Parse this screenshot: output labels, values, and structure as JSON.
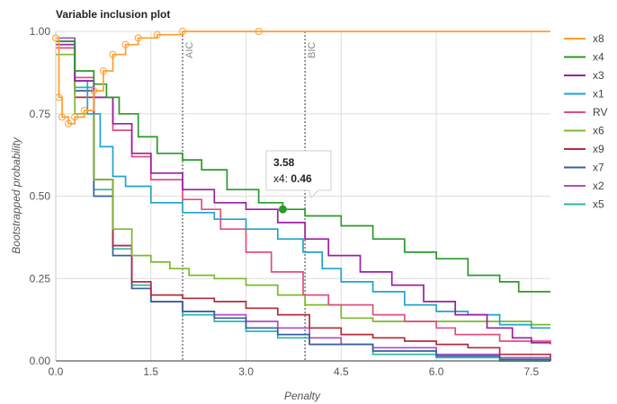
{
  "chart_data": {
    "type": "line",
    "title": "Variable inclusion plot",
    "xlabel": "Penalty",
    "ylabel": "Bootstrapped probability",
    "xlim": [
      0,
      7.8
    ],
    "ylim": [
      0,
      1
    ],
    "x_ticks": [
      "0.0",
      "1.5",
      "3.0",
      "4.5",
      "6.0",
      "7.5"
    ],
    "y_ticks": [
      "0.00",
      "0.25",
      "0.50",
      "0.75",
      "1.00"
    ],
    "grid": true,
    "legend_position": "right",
    "vlines": [
      {
        "label": "AIC",
        "x": 2.0
      },
      {
        "label": "BIC",
        "x": 3.93
      }
    ],
    "series": [
      {
        "name": "x8",
        "color": "#ff9e2c",
        "points": [
          [
            0,
            0.98
          ],
          [
            0.05,
            0.8
          ],
          [
            0.1,
            0.74
          ],
          [
            0.2,
            0.72
          ],
          [
            0.3,
            0.74
          ],
          [
            0.45,
            0.76
          ],
          [
            0.6,
            0.82
          ],
          [
            0.75,
            0.88
          ],
          [
            0.9,
            0.93
          ],
          [
            1.1,
            0.96
          ],
          [
            1.3,
            0.98
          ],
          [
            1.6,
            0.99
          ],
          [
            2.0,
            1.0
          ],
          [
            3.2,
            1.0
          ],
          [
            7.8,
            1.0
          ]
        ],
        "markers_until": 3.2
      },
      {
        "name": "x4",
        "color": "#2a9a2a",
        "points": [
          [
            0,
            0.97
          ],
          [
            0.3,
            0.88
          ],
          [
            0.6,
            0.84
          ],
          [
            0.8,
            0.8
          ],
          [
            1.0,
            0.75
          ],
          [
            1.3,
            0.68
          ],
          [
            1.6,
            0.63
          ],
          [
            2.0,
            0.61
          ],
          [
            2.3,
            0.58
          ],
          [
            2.7,
            0.52
          ],
          [
            3.2,
            0.48
          ],
          [
            3.58,
            0.46
          ],
          [
            3.93,
            0.44
          ],
          [
            4.5,
            0.41
          ],
          [
            5.0,
            0.37
          ],
          [
            5.5,
            0.33
          ],
          [
            6.0,
            0.31
          ],
          [
            6.5,
            0.26
          ],
          [
            7.0,
            0.24
          ],
          [
            7.3,
            0.21
          ],
          [
            7.8,
            0.21
          ]
        ]
      },
      {
        "name": "x3",
        "color": "#9c1fa0",
        "points": [
          [
            0,
            0.96
          ],
          [
            0.3,
            0.85
          ],
          [
            0.6,
            0.8
          ],
          [
            0.9,
            0.72
          ],
          [
            1.2,
            0.63
          ],
          [
            1.5,
            0.57
          ],
          [
            2.0,
            0.52
          ],
          [
            2.5,
            0.48
          ],
          [
            3.0,
            0.46
          ],
          [
            3.5,
            0.42
          ],
          [
            3.93,
            0.37
          ],
          [
            4.3,
            0.32
          ],
          [
            4.8,
            0.27
          ],
          [
            5.3,
            0.23
          ],
          [
            5.8,
            0.18
          ],
          [
            6.3,
            0.14
          ],
          [
            6.8,
            0.1
          ],
          [
            7.2,
            0.07
          ],
          [
            7.5,
            0.055
          ],
          [
            7.8,
            0.055
          ]
        ]
      },
      {
        "name": "x1",
        "color": "#1fa3d0",
        "points": [
          [
            0,
            0.97
          ],
          [
            0.3,
            0.85
          ],
          [
            0.5,
            0.75
          ],
          [
            0.7,
            0.65
          ],
          [
            0.9,
            0.56
          ],
          [
            1.1,
            0.53
          ],
          [
            1.5,
            0.48
          ],
          [
            2.0,
            0.45
          ],
          [
            2.5,
            0.43
          ],
          [
            3.0,
            0.4
          ],
          [
            3.5,
            0.37
          ],
          [
            3.9,
            0.33
          ],
          [
            4.2,
            0.28
          ],
          [
            4.5,
            0.24
          ],
          [
            5.0,
            0.21
          ],
          [
            5.5,
            0.17
          ],
          [
            6.0,
            0.15
          ],
          [
            6.5,
            0.14
          ],
          [
            7.0,
            0.11
          ],
          [
            7.5,
            0.1
          ],
          [
            7.8,
            0.1
          ]
        ]
      },
      {
        "name": "RV",
        "color": "#e04f7e",
        "points": [
          [
            0,
            0.95
          ],
          [
            0.3,
            0.86
          ],
          [
            0.6,
            0.8
          ],
          [
            0.9,
            0.7
          ],
          [
            1.2,
            0.62
          ],
          [
            1.5,
            0.55
          ],
          [
            2.0,
            0.49
          ],
          [
            2.3,
            0.46
          ],
          [
            2.6,
            0.4
          ],
          [
            3.0,
            0.33
          ],
          [
            3.4,
            0.27
          ],
          [
            3.9,
            0.2
          ],
          [
            4.3,
            0.17
          ],
          [
            5.0,
            0.14
          ],
          [
            5.5,
            0.12
          ],
          [
            6.0,
            0.1
          ],
          [
            6.3,
            0.08
          ],
          [
            7.0,
            0.06
          ],
          [
            7.8,
            0.05
          ]
        ]
      },
      {
        "name": "x6",
        "color": "#7cb82f",
        "points": [
          [
            0,
            0.93
          ],
          [
            0.3,
            0.75
          ],
          [
            0.6,
            0.55
          ],
          [
            0.9,
            0.4
          ],
          [
            1.2,
            0.32
          ],
          [
            1.5,
            0.3
          ],
          [
            1.8,
            0.28
          ],
          [
            2.1,
            0.26
          ],
          [
            2.5,
            0.25
          ],
          [
            3.0,
            0.23
          ],
          [
            3.5,
            0.2
          ],
          [
            3.93,
            0.17
          ],
          [
            4.5,
            0.13
          ],
          [
            5.0,
            0.12
          ],
          [
            5.5,
            0.12
          ],
          [
            6.5,
            0.12
          ],
          [
            7.5,
            0.11
          ],
          [
            7.8,
            0.11
          ]
        ]
      },
      {
        "name": "x9",
        "color": "#b52b3a",
        "points": [
          [
            0,
            0.96
          ],
          [
            0.3,
            0.8
          ],
          [
            0.6,
            0.55
          ],
          [
            0.9,
            0.35
          ],
          [
            1.2,
            0.24
          ],
          [
            1.5,
            0.2
          ],
          [
            2.0,
            0.19
          ],
          [
            2.5,
            0.18
          ],
          [
            3.0,
            0.16
          ],
          [
            3.5,
            0.14
          ],
          [
            4.0,
            0.1
          ],
          [
            4.5,
            0.08
          ],
          [
            5.0,
            0.07
          ],
          [
            5.5,
            0.06
          ],
          [
            6.0,
            0.05
          ],
          [
            6.5,
            0.04
          ],
          [
            7.0,
            0.02
          ],
          [
            7.8,
            0.01
          ]
        ]
      },
      {
        "name": "x7",
        "color": "#3a5fa0",
        "points": [
          [
            0,
            0.97
          ],
          [
            0.3,
            0.82
          ],
          [
            0.6,
            0.5
          ],
          [
            0.9,
            0.32
          ],
          [
            1.2,
            0.22
          ],
          [
            1.5,
            0.18
          ],
          [
            2.0,
            0.15
          ],
          [
            2.5,
            0.13
          ],
          [
            3.0,
            0.1
          ],
          [
            3.5,
            0.08
          ],
          [
            4.0,
            0.05
          ],
          [
            5.0,
            0.03
          ],
          [
            6.0,
            0.015
          ],
          [
            7.0,
            0.005
          ],
          [
            7.8,
            0.0
          ]
        ]
      },
      {
        "name": "x2",
        "color": "#b04cc4",
        "points": [
          [
            0,
            0.98
          ],
          [
            0.3,
            0.85
          ],
          [
            0.6,
            0.55
          ],
          [
            0.9,
            0.35
          ],
          [
            1.2,
            0.22
          ],
          [
            1.5,
            0.18
          ],
          [
            2.0,
            0.15
          ],
          [
            2.5,
            0.14
          ],
          [
            3.0,
            0.12
          ],
          [
            3.5,
            0.1
          ],
          [
            4.0,
            0.07
          ],
          [
            4.5,
            0.05
          ],
          [
            5.0,
            0.04
          ],
          [
            6.0,
            0.02
          ],
          [
            7.0,
            0.01
          ],
          [
            7.8,
            0.0
          ]
        ]
      },
      {
        "name": "x5",
        "color": "#2ab5b0",
        "points": [
          [
            0,
            0.98
          ],
          [
            0.3,
            0.83
          ],
          [
            0.6,
            0.52
          ],
          [
            0.9,
            0.34
          ],
          [
            1.2,
            0.23
          ],
          [
            1.5,
            0.18
          ],
          [
            2.0,
            0.14
          ],
          [
            2.5,
            0.12
          ],
          [
            3.0,
            0.09
          ],
          [
            3.5,
            0.07
          ],
          [
            4.0,
            0.05
          ],
          [
            5.0,
            0.02
          ],
          [
            6.0,
            0.01
          ],
          [
            7.0,
            0.0
          ],
          [
            7.8,
            0.0
          ]
        ]
      }
    ],
    "tooltip": {
      "x_label": "3.58",
      "series": "x4",
      "value": "0.46",
      "x": 3.58,
      "y": 0.46
    }
  }
}
